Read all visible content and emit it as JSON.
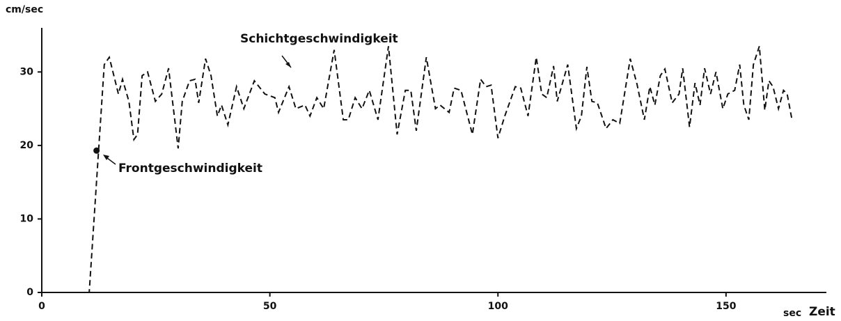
{
  "chart_data": {
    "type": "line",
    "ylabel": "cm/sec",
    "xunit": "sec",
    "xlabel": "Zeit",
    "annotations": [
      "Schichtgeschwindigkeit",
      "Frontgeschwindigkeit"
    ],
    "xlim": [
      0,
      172
    ],
    "ylim": [
      0,
      36
    ],
    "xticks": [
      0,
      50,
      100,
      150
    ],
    "yticks": [
      0,
      10,
      20,
      30
    ],
    "series": [
      {
        "color": "#111111",
        "x": [
          0,
          10.4,
          13.7,
          14.8,
          16.8,
          17.7,
          19.1,
          20.2,
          21,
          22,
          23.2,
          24.9,
          26.3,
          27.8,
          29.9,
          30.8,
          32.4,
          33.6,
          34.4,
          35.9,
          37.1,
          38.5,
          39.4,
          40.8,
          42.7,
          44.3,
          46.6,
          48.9,
          51.1,
          51.9,
          54.2,
          55.7,
          57.7,
          58.8,
          60.3,
          61.8,
          64.1,
          66.1,
          67.2,
          68.7,
          70.2,
          71.8,
          73.7,
          76,
          77.9,
          79.7,
          80.9,
          82.1,
          84.3,
          86.3,
          87.3,
          89.3,
          90.4,
          91.9,
          94.4,
          96.2,
          97.4,
          98.5,
          100,
          101.5,
          103.8,
          105,
          106.6,
          108.4,
          109.6,
          110.7,
          112.2,
          113,
          115.3,
          117.2,
          118.3,
          119.5,
          120.6,
          121.8,
          123.7,
          125.2,
          126.7,
          129,
          130.5,
          132.1,
          133.3,
          134.4,
          135.6,
          136.6,
          138.2,
          139.7,
          140.5,
          142,
          143.2,
          144.3,
          145.3,
          146.6,
          147.8,
          149.3,
          150.4,
          151.9,
          153,
          153.9,
          155,
          156,
          157.3,
          158.5,
          159.4,
          160.3,
          161.5,
          162.6,
          163.4,
          164.4
        ],
        "values": [
          0,
          0,
          31,
          32,
          27,
          29,
          26,
          20.8,
          21.5,
          29.5,
          30,
          26,
          27,
          30.5,
          19.6,
          26,
          28.8,
          29,
          25.8,
          31.8,
          29.5,
          24,
          25.5,
          22.8,
          28,
          25,
          28.8,
          27,
          26.5,
          24.5,
          28,
          25,
          25.5,
          24,
          26.5,
          25,
          33,
          23.5,
          23.5,
          26.5,
          25,
          27.5,
          23.5,
          33.5,
          21.5,
          27.5,
          27.5,
          22,
          32,
          25,
          25.5,
          24.5,
          27.8,
          27.5,
          21.5,
          29,
          28,
          28.2,
          21,
          24,
          28,
          27.8,
          24,
          32,
          27,
          26.5,
          30.8,
          26,
          31,
          22.3,
          24,
          30.7,
          26,
          25.8,
          22.3,
          23.5,
          23,
          31.8,
          28.3,
          23.5,
          28,
          25.5,
          29.5,
          30.4,
          25.8,
          27,
          30.5,
          22.5,
          28.5,
          25.5,
          30.5,
          27,
          30,
          25,
          27,
          27.5,
          31,
          25.5,
          23.5,
          31,
          33.5,
          24.8,
          28.8,
          28,
          25,
          27.5,
          27,
          23.7
        ]
      }
    ],
    "markers": [
      {
        "x": 12,
        "y": 19.3
      }
    ]
  }
}
